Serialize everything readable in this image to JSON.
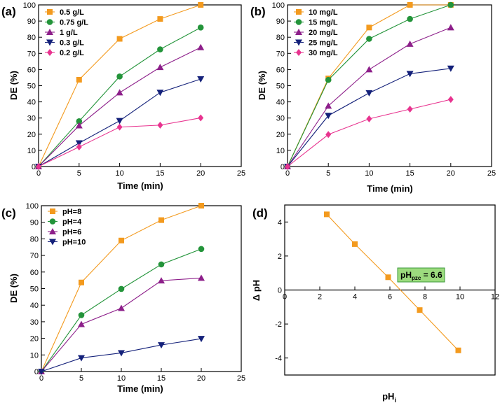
{
  "colors": {
    "orange": "#F39A1E",
    "green": "#23943A",
    "purple": "#8D1F8A",
    "navy": "#14217A",
    "pink": "#E8338F",
    "pzc_box_bg": "#9CDB7E",
    "pzc_box_border": "#3C9A3C"
  },
  "chart_data": [
    {
      "panel": "(a)",
      "type": "line",
      "xlabel": "Time (min)",
      "ylabel": "DE (%)",
      "xlim": [
        0,
        25
      ],
      "ylim": [
        0,
        100
      ],
      "xticks": [
        0,
        5,
        10,
        15,
        20,
        25
      ],
      "yticks": [
        0,
        10,
        20,
        30,
        40,
        50,
        60,
        70,
        80,
        90,
        100
      ],
      "legend_position": "top-left",
      "x": [
        0,
        5,
        10,
        15,
        20
      ],
      "series": [
        {
          "name": "0.5 g/L",
          "color": "orange",
          "marker": "square",
          "values": [
            0,
            53.7,
            79,
            91.3,
            100
          ]
        },
        {
          "name": "0.75 g/L",
          "color": "green",
          "marker": "circle",
          "values": [
            0,
            28,
            55.7,
            72.5,
            86
          ]
        },
        {
          "name": "1 g/L",
          "color": "purple",
          "marker": "triangle-up",
          "values": [
            0,
            25.3,
            45.7,
            61.4,
            73.7
          ]
        },
        {
          "name": "0.3 g/L",
          "color": "navy",
          "marker": "triangle-down",
          "values": [
            0,
            14.5,
            28.3,
            45.8,
            54.1
          ]
        },
        {
          "name": "0.2 g/L",
          "color": "pink",
          "marker": "diamond",
          "values": [
            0,
            12.1,
            24.4,
            25.6,
            30.1
          ]
        }
      ]
    },
    {
      "panel": "(b)",
      "type": "line",
      "xlabel": "Time (min)",
      "ylabel": "DE (%)",
      "xlim": [
        0,
        25
      ],
      "ylim": [
        0,
        100
      ],
      "xticks": [
        0,
        5,
        10,
        15,
        20,
        25
      ],
      "yticks": [
        0,
        10,
        20,
        30,
        40,
        50,
        60,
        70,
        80,
        90,
        100
      ],
      "legend_position": "top-left",
      "x": [
        0,
        5,
        10,
        15,
        20
      ],
      "series": [
        {
          "name": "10 mg/L",
          "color": "orange",
          "marker": "square",
          "values": [
            0,
            54.5,
            86,
            100,
            100
          ]
        },
        {
          "name": "15 mg/L",
          "color": "green",
          "marker": "circle",
          "values": [
            0,
            53.6,
            79,
            91.3,
            100
          ]
        },
        {
          "name": "20 mg/L",
          "color": "purple",
          "marker": "triangle-up",
          "values": [
            0,
            37.5,
            60,
            75.8,
            86
          ]
        },
        {
          "name": "25 mg/L",
          "color": "navy",
          "marker": "triangle-down",
          "values": [
            0,
            31.5,
            45.5,
            57.4,
            60.7
          ]
        },
        {
          "name": "30 mg/L",
          "color": "pink",
          "marker": "diamond",
          "values": [
            0,
            19.8,
            29.5,
            35.5,
            41.5
          ]
        }
      ]
    },
    {
      "panel": "(c)",
      "type": "line",
      "xlabel": "Time (min)",
      "ylabel": "DE (%)",
      "xlim": [
        0,
        25
      ],
      "ylim": [
        0,
        100
      ],
      "xticks": [
        0,
        5,
        10,
        15,
        20,
        25
      ],
      "yticks": [
        0,
        10,
        20,
        30,
        40,
        50,
        60,
        70,
        80,
        90,
        100
      ],
      "legend_position": "top-left",
      "x": [
        0,
        5,
        10,
        15,
        20
      ],
      "series": [
        {
          "name": "pH=8",
          "color": "orange",
          "marker": "square",
          "values": [
            0,
            53.7,
            79,
            91.3,
            100
          ]
        },
        {
          "name": "pH=4",
          "color": "green",
          "marker": "circle",
          "values": [
            0,
            34,
            49.8,
            64.6,
            73.9
          ]
        },
        {
          "name": "pH=6",
          "color": "purple",
          "marker": "triangle-up",
          "values": [
            0,
            28.5,
            38.2,
            54.8,
            56.4
          ]
        },
        {
          "name": "pH=10",
          "color": "navy",
          "marker": "triangle-down",
          "values": [
            0,
            8.2,
            11.2,
            16,
            19.8
          ]
        }
      ]
    },
    {
      "panel": "(d)",
      "type": "line",
      "xlabel_main": "pH",
      "xlabel_sub": "i",
      "ylabel": "Δ pH",
      "xlim": [
        0,
        12
      ],
      "ylim": [
        -5,
        5
      ],
      "xticks": [
        0,
        2,
        4,
        6,
        8,
        10,
        12
      ],
      "yticks": [
        -4,
        -2,
        0,
        2,
        4
      ],
      "legend_position": "none",
      "annotation": {
        "main": "pH",
        "sub": "pzc",
        "suffix": " = 6.6"
      },
      "x": [
        2.4,
        4.0,
        5.9,
        7.7,
        9.9
      ],
      "series": [
        {
          "name": "ΔpH",
          "color": "orange",
          "marker": "square",
          "values": [
            4.45,
            2.7,
            0.75,
            -1.18,
            -3.55
          ]
        }
      ]
    }
  ]
}
